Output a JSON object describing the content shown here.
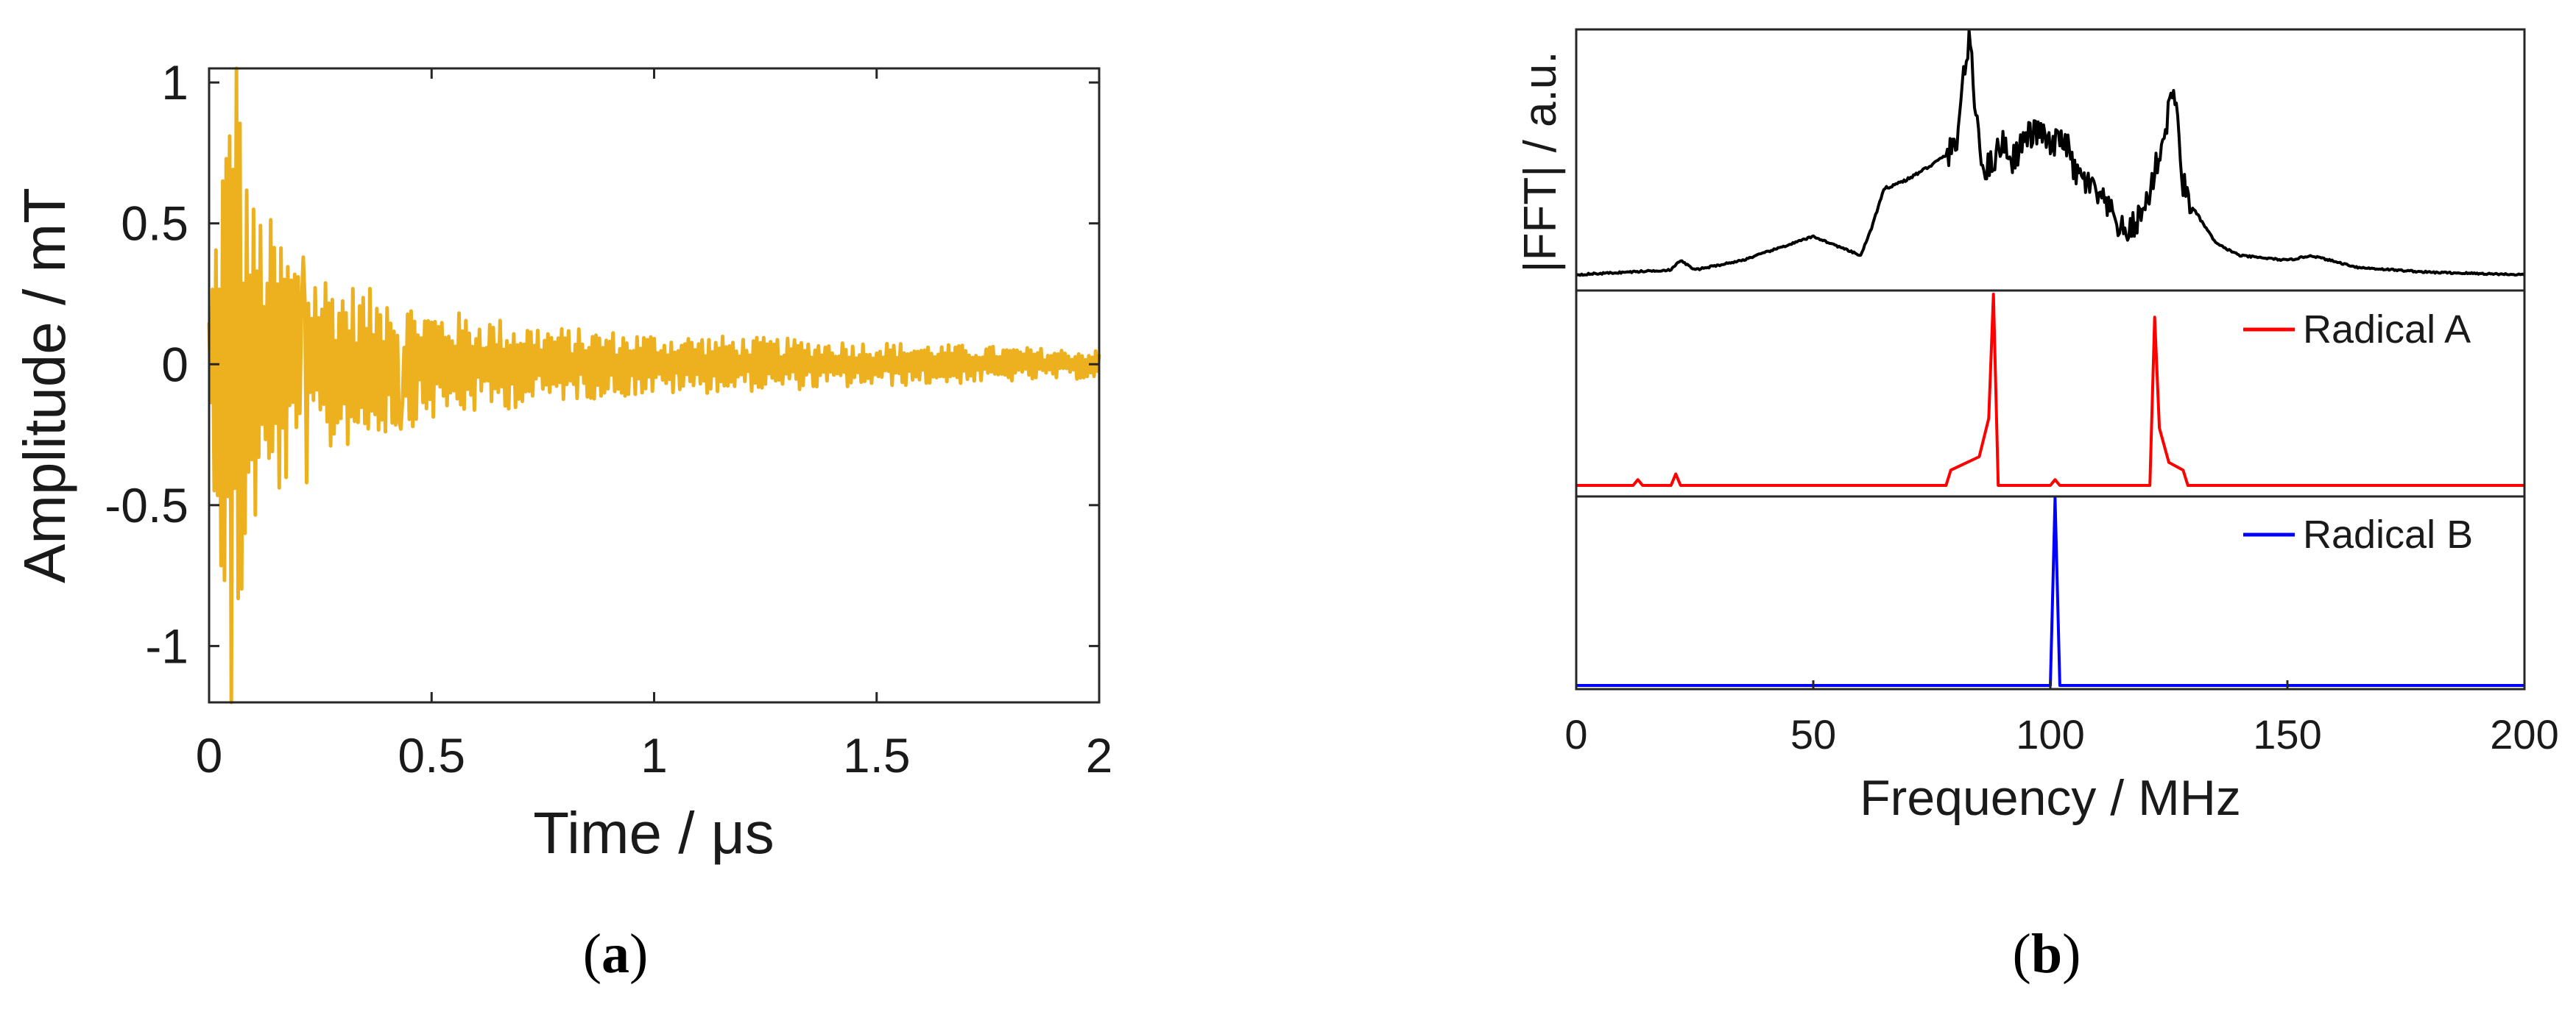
{
  "panels": {
    "a": {
      "label": "a"
    },
    "b": {
      "label": "b"
    }
  },
  "chart_data": [
    {
      "id": "a",
      "type": "line",
      "xlabel": "Time / μs",
      "ylabel": "Amplitude / mT",
      "xlim": [
        0,
        2
      ],
      "ylim": [
        -1.2,
        1.05
      ],
      "xticks": [
        0,
        0.5,
        1,
        1.5,
        2
      ],
      "xtick_labels": [
        "0",
        "0.5",
        "1",
        "1.5",
        "2"
      ],
      "yticks": [
        1,
        0.5,
        0,
        -0.5,
        -1
      ],
      "ytick_labels": [
        "1",
        "0.5",
        "0",
        "-0.5",
        "-1"
      ],
      "grid": false,
      "series": [
        {
          "color": "#EDB120",
          "envelope": {
            "t": [
              0,
              0.03,
              0.06,
              0.1,
              0.2,
              0.3,
              0.5,
              0.8,
              1.0,
              1.5,
              2.0
            ],
            "amplitude": [
              0.2,
              0.85,
              1.05,
              0.6,
              0.4,
              0.3,
              0.2,
              0.13,
              0.11,
              0.08,
              0.05
            ]
          },
          "peaks": [
            {
              "t": 0.03,
              "y": 0.65
            },
            {
              "t": 0.05,
              "y": -1.2
            },
            {
              "t": 0.06,
              "y": 1.05
            },
            {
              "t": 0.08,
              "y": -0.6
            },
            {
              "t": 0.1,
              "y": 0.55
            },
            {
              "t": 0.21,
              "y": 0.38
            },
            {
              "t": 0.22,
              "y": -0.42
            },
            {
              "t": 0.4,
              "y": 0.2
            },
            {
              "t": 0.43,
              "y": -0.23
            }
          ]
        }
      ]
    },
    {
      "id": "b",
      "type": "line",
      "xlabel": "Frequency / MHz",
      "ylabel": "|FFT| / a.u.",
      "xlim": [
        0,
        200
      ],
      "xticks": [
        0,
        50,
        100,
        150,
        200
      ],
      "xtick_labels": [
        "0",
        "50",
        "100",
        "150",
        "200"
      ],
      "grid": false,
      "legend_placement": "top-right of each subpanel",
      "series": [
        {
          "name": "",
          "color": "#000000",
          "subpanel": "top",
          "x": [
            0,
            10,
            20,
            22,
            25,
            35,
            50,
            60,
            62,
            65,
            70,
            75,
            78,
            80,
            82,
            83,
            84,
            86,
            88,
            90,
            92,
            95,
            98,
            100,
            103,
            105,
            108,
            112,
            116,
            120,
            122,
            124,
            126,
            127,
            128,
            130,
            135,
            140,
            150,
            155,
            165,
            180,
            200
          ],
          "y": [
            0.02,
            0.03,
            0.04,
            0.08,
            0.04,
            0.08,
            0.18,
            0.1,
            0.2,
            0.38,
            0.42,
            0.48,
            0.52,
            0.55,
            0.9,
            1.0,
            0.75,
            0.45,
            0.5,
            0.58,
            0.5,
            0.6,
            0.62,
            0.55,
            0.6,
            0.45,
            0.4,
            0.3,
            0.18,
            0.3,
            0.45,
            0.6,
            0.82,
            0.6,
            0.4,
            0.3,
            0.15,
            0.1,
            0.08,
            0.1,
            0.05,
            0.03,
            0.02
          ]
        },
        {
          "name": "Radical A",
          "color": "#ff0000",
          "subpanel": "middle",
          "x": [
            0,
            12,
            13,
            14,
            20,
            21,
            22,
            60,
            78,
            79,
            85,
            87,
            88,
            89,
            100,
            101,
            102,
            121,
            122,
            123,
            125,
            128,
            129,
            200
          ],
          "y": [
            0,
            0,
            0.03,
            0,
            0,
            0.06,
            0,
            0,
            0,
            0.08,
            0.15,
            0.35,
            1.0,
            0,
            0,
            0.03,
            0,
            0,
            0.88,
            0.3,
            0.12,
            0.08,
            0,
            0
          ]
        },
        {
          "name": "Radical B",
          "color": "#0000ff",
          "subpanel": "bottom",
          "x": [
            0,
            100,
            100.6,
            101,
            101.4,
            102,
            200
          ],
          "y": [
            0,
            0,
            0.6,
            1.0,
            0.6,
            0,
            0
          ]
        }
      ]
    }
  ]
}
